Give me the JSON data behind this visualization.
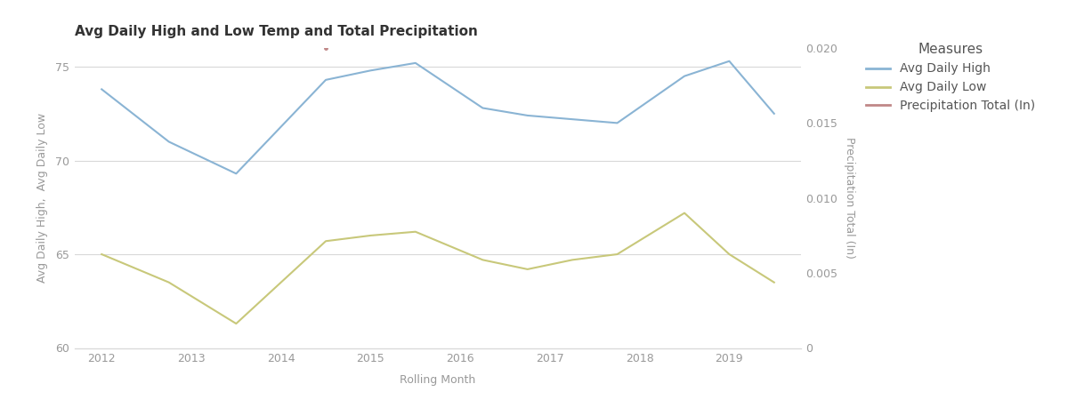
{
  "title": "Avg Daily High and Low Temp and Total Precipitation",
  "xlabel": "Rolling Month",
  "ylabel_left": "Avg Daily High,  Avg Daily Low",
  "ylabel_right": "Precipitation Total (In)",
  "avg_high_x": [
    0,
    0.75,
    1.5,
    2.5,
    3.0,
    3.5,
    4.25,
    4.75,
    5.25,
    5.75,
    6.5,
    7.0,
    7.5
  ],
  "avg_high_y": [
    73.8,
    71.0,
    69.3,
    74.3,
    74.8,
    75.2,
    72.8,
    72.4,
    72.2,
    72.0,
    74.5,
    75.3,
    72.5
  ],
  "avg_low_x": [
    0,
    0.75,
    1.5,
    2.5,
    3.0,
    3.5,
    4.25,
    4.75,
    5.25,
    5.75,
    6.5,
    7.0,
    7.5
  ],
  "avg_low_y": [
    65.0,
    63.5,
    61.3,
    65.7,
    66.0,
    66.2,
    64.7,
    64.2,
    64.7,
    65.0,
    67.2,
    65.0,
    63.5
  ],
  "precip_x": [
    2.5
  ],
  "precip_y": [
    0.02
  ],
  "high_color": "#8ab4d4",
  "low_color": "#c8c87a",
  "precip_color": "#c08888",
  "ylim_left": [
    60,
    76
  ],
  "ylim_right": [
    0,
    0.02
  ],
  "yticks_left": [
    60,
    65,
    70,
    75
  ],
  "yticks_right": [
    0,
    0.005,
    0.01,
    0.015,
    0.02
  ],
  "xtick_positions": [
    0,
    1,
    2,
    3,
    4,
    5,
    6,
    7
  ],
  "xtick_labels": [
    "2012",
    "2013",
    "2014",
    "2015",
    "2016",
    "2017",
    "2018",
    "2019"
  ],
  "xlim": [
    -0.3,
    7.8
  ],
  "grid_color": "#d8d8d8",
  "bg_color": "#ffffff",
  "legend_title": "Measures",
  "legend_entries": [
    "Avg Daily High",
    "Avg Daily Low",
    "Precipitation Total (In)"
  ],
  "legend_colors": [
    "#8ab4d4",
    "#c8c87a",
    "#c08888"
  ],
  "title_fontsize": 11,
  "axis_label_fontsize": 9,
  "tick_fontsize": 9,
  "legend_fontsize": 10,
  "legend_title_fontsize": 11
}
